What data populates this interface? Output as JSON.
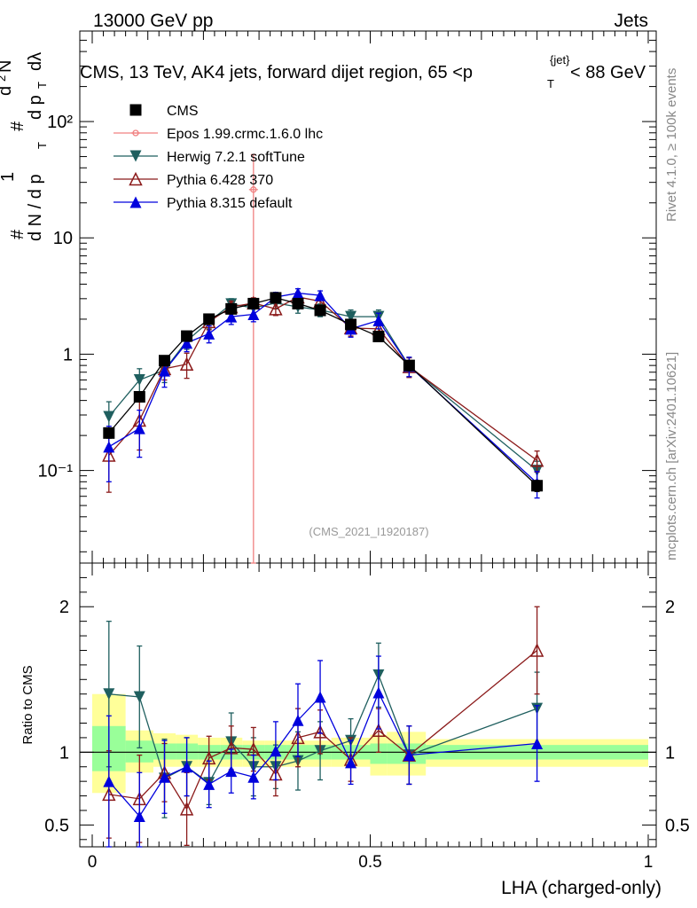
{
  "header": {
    "left": "13000 GeV pp",
    "right": "Jets",
    "plot_title": "CMS, 13 TeV, AK4 jets, forward dijet region, 65 <p",
    "plot_title_sup": "{jet}",
    "plot_title_sub": "T",
    "plot_title_end": "< 88 GeV",
    "analysis_id": "(CMS_2021_I1920187)"
  },
  "side": {
    "rivet": "Rivet 4.1.0, ≥ 100k events",
    "source": "mcplots.cern.ch [arXiv:2401.10621]"
  },
  "ylabel": {
    "hash1": "#",
    "one": "1",
    "den": "d N / d p",
    "den_sub": "T",
    "hash2": "#",
    "num": "d",
    "num_sup": "2",
    "num_end": "N",
    "den2": "d p",
    "den2_sub": "T",
    "den2_end": "dλ"
  },
  "chart_data": {
    "type": "line",
    "title": "CMS, 13 TeV, AK4 jets, forward dijet region, 65 <p_T^{jet}< 88 GeV",
    "xlabel": "LHA (charged-only)",
    "ylabel": "1/(dN/dp_T) d²N/(dp_T dλ)",
    "xlim": [
      -0.02,
      1.0
    ],
    "ylim": [
      0.016,
      600
    ],
    "yscale": "log",
    "xticks": [
      0,
      0.5,
      1
    ],
    "xtick_labels": [
      "0",
      "0.5",
      "1"
    ],
    "yticks": [
      0.1,
      1,
      10,
      100
    ],
    "ytick_labels": [
      "10⁻¹",
      "1",
      "10",
      "10²"
    ],
    "x": [
      0.03,
      0.085,
      0.13,
      0.17,
      0.21,
      0.25,
      0.29,
      0.33,
      0.37,
      0.41,
      0.465,
      0.515,
      0.57,
      0.8
    ],
    "bin_edges": [
      0,
      0.06,
      0.11,
      0.15,
      0.19,
      0.23,
      0.27,
      0.31,
      0.35,
      0.39,
      0.43,
      0.5,
      0.53,
      0.6,
      1.0
    ],
    "series": [
      {
        "name": "CMS",
        "color": "#000000",
        "marker": "square",
        "values": [
          0.21,
          0.43,
          0.88,
          1.43,
          2.0,
          2.45,
          2.72,
          3.05,
          2.72,
          2.38,
          1.8,
          1.42,
          0.8,
          0.074
        ],
        "errors": [
          0.02,
          0.04,
          0.08,
          0.12,
          0.16,
          0.18,
          0.2,
          0.22,
          0.2,
          0.18,
          0.15,
          0.12,
          0.08,
          0.008
        ]
      },
      {
        "name": "Epos 1.99.crmc.1.6.0 lhc",
        "color": "#f08080",
        "marker": "cross",
        "values": [
          null,
          null,
          null,
          null,
          null,
          null,
          26,
          null,
          null,
          null,
          null,
          null,
          null,
          null
        ],
        "errors": [
          null,
          null,
          null,
          null,
          null,
          null,
          25.99,
          null,
          null,
          null,
          null,
          null,
          null,
          null
        ]
      },
      {
        "name": "Herwig 7.2.1 softTune",
        "color": "#1f5f5f",
        "marker": "triangle-down",
        "values": [
          0.29,
          0.6,
          0.73,
          1.3,
          1.9,
          2.7,
          2.5,
          2.75,
          2.55,
          2.4,
          2.1,
          2.1,
          0.79,
          0.1
        ],
        "errors": [
          0.1,
          0.15,
          0.16,
          0.2,
          0.25,
          0.3,
          0.3,
          0.3,
          0.3,
          0.3,
          0.3,
          0.3,
          0.15,
          0.02
        ]
      },
      {
        "name": "Pythia 6.428 370",
        "color": "#8b1a1a",
        "marker": "triangle-up-open",
        "values": [
          0.135,
          0.27,
          0.75,
          0.82,
          1.9,
          2.55,
          2.75,
          2.45,
          3.1,
          2.85,
          1.68,
          1.65,
          0.78,
          0.122
        ],
        "errors": [
          0.07,
          0.12,
          0.15,
          0.2,
          0.28,
          0.3,
          0.3,
          0.3,
          0.3,
          0.3,
          0.25,
          0.25,
          0.15,
          0.025
        ]
      },
      {
        "name": "Pythia 8.315 default",
        "color": "#0000dd",
        "marker": "triangle-up",
        "values": [
          0.16,
          0.23,
          0.72,
          1.25,
          1.5,
          2.1,
          2.2,
          3.1,
          3.35,
          3.2,
          1.65,
          1.95,
          0.79,
          0.078
        ],
        "errors": [
          0.08,
          0.1,
          0.2,
          0.2,
          0.25,
          0.3,
          0.3,
          0.3,
          0.3,
          0.3,
          0.25,
          0.3,
          0.15,
          0.02
        ]
      }
    ],
    "ratio": {
      "ylabel": "Ratio to CMS",
      "ylim": [
        0.35,
        2.3
      ],
      "yticks": [
        0.5,
        1,
        2
      ],
      "ytick_labels": [
        "0.5",
        "1",
        "2"
      ],
      "band_yellow": [
        [
          0.72,
          1.4
        ],
        [
          0.86,
          1.15
        ],
        [
          0.9,
          1.13
        ],
        [
          0.9,
          1.12
        ],
        [
          0.9,
          1.1
        ],
        [
          0.9,
          1.1
        ],
        [
          0.9,
          1.08
        ],
        [
          0.9,
          1.08
        ],
        [
          0.9,
          1.08
        ],
        [
          0.9,
          1.08
        ],
        [
          0.9,
          1.1
        ],
        [
          0.84,
          1.12
        ],
        [
          0.84,
          1.14
        ],
        [
          0.9,
          1.09
        ]
      ],
      "band_green": [
        [
          0.87,
          1.18
        ],
        [
          0.93,
          1.08
        ],
        [
          0.95,
          1.06
        ],
        [
          0.95,
          1.06
        ],
        [
          0.95,
          1.05
        ],
        [
          0.95,
          1.05
        ],
        [
          0.95,
          1.05
        ],
        [
          0.95,
          1.05
        ],
        [
          0.95,
          1.05
        ],
        [
          0.95,
          1.05
        ],
        [
          0.95,
          1.05
        ],
        [
          0.92,
          1.06
        ],
        [
          0.92,
          1.06
        ],
        [
          0.95,
          1.05
        ]
      ],
      "series": [
        {
          "name": "Herwig 7.2.1 softTune",
          "color": "#1f5f5f",
          "marker": "triangle-down",
          "values": [
            1.4,
            1.38,
            0.82,
            0.9,
            0.79,
            1.07,
            0.9,
            0.9,
            0.94,
            1.01,
            1.08,
            1.53,
            0.98,
            1.3
          ],
          "errors": [
            0.5,
            0.35,
            0.27,
            0.2,
            0.15,
            0.2,
            0.2,
            0.15,
            0.2,
            0.2,
            0.15,
            0.22,
            0.2,
            0.25
          ]
        },
        {
          "name": "Pythia 6.428 370",
          "color": "#8b1a1a",
          "marker": "triangle-up-open",
          "values": [
            0.71,
            0.68,
            0.86,
            0.61,
            0.96,
            1.03,
            1.02,
            0.85,
            1.1,
            1.14,
            0.95,
            1.15,
            0.98,
            1.7
          ],
          "errors": [
            0.3,
            0.3,
            0.2,
            0.25,
            0.15,
            0.15,
            0.15,
            0.15,
            0.2,
            0.15,
            0.15,
            0.15,
            0.2,
            0.3
          ]
        },
        {
          "name": "Pythia 8.315 default",
          "color": "#0000dd",
          "marker": "triangle-up",
          "values": [
            0.8,
            0.56,
            0.83,
            0.9,
            0.78,
            0.87,
            0.83,
            1.01,
            1.22,
            1.38,
            0.93,
            1.41,
            0.98,
            1.06
          ],
          "errors": [
            0.45,
            0.3,
            0.25,
            0.2,
            0.16,
            0.15,
            0.15,
            0.2,
            0.25,
            0.25,
            0.15,
            0.25,
            0.2,
            0.26
          ]
        }
      ]
    }
  }
}
